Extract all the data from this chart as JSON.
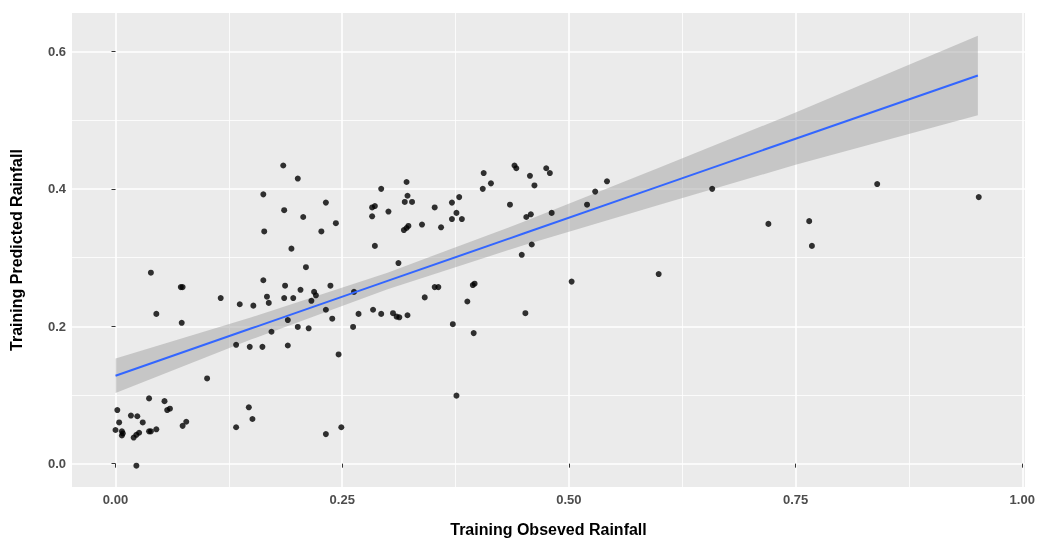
{
  "chart_data": {
    "type": "scatter",
    "xlabel": "Training Obseved Rainfall",
    "ylabel": "Training Predicted Rainfall",
    "xlim": [
      -0.048,
      1.003
    ],
    "ylim": [
      -0.034,
      0.656
    ],
    "xticks": [
      {
        "value": 0,
        "label": "0.00"
      },
      {
        "value": 0.25,
        "label": "0.25"
      },
      {
        "value": 0.5,
        "label": "0.50"
      },
      {
        "value": 0.75,
        "label": "0.75"
      },
      {
        "value": 1,
        "label": "1.00"
      }
    ],
    "yticks": [
      {
        "value": 0,
        "label": "0.0"
      },
      {
        "value": 0.2,
        "label": "0.2"
      },
      {
        "value": 0.4,
        "label": "0.4"
      },
      {
        "value": 0.6,
        "label": "0.6"
      }
    ],
    "grid": true,
    "series": [
      {
        "color": "#000000",
        "marker": "circle",
        "x": [
          0.185,
          0.201,
          0.163,
          0.186,
          0.232,
          0.207,
          0.164,
          0.227,
          0.243,
          0.293,
          0.283,
          0.286,
          0.283,
          0.301,
          0.286,
          0.194,
          0.21,
          0.039,
          0.163,
          0.072,
          0.074,
          0.116,
          0.137,
          0.152,
          0.167,
          0.169,
          0.187,
          0.186,
          0.196,
          0.204,
          0.219,
          0.221,
          0.216,
          0.237,
          0.232,
          0.239,
          0.263,
          0.268,
          0.284,
          0.293,
          0.262,
          0.045,
          0.073,
          0.19,
          0.201,
          0.213,
          0.172,
          0.133,
          0.148,
          0.162,
          0.19,
          0.246,
          0.101,
          0.037,
          0.054,
          0.057,
          0.06,
          0.002,
          0.017,
          0.024,
          0.004,
          0.03,
          0.0,
          0.007,
          0.008,
          0.007,
          0.02,
          0.023,
          0.026,
          0.037,
          0.039,
          0.045,
          0.074,
          0.078,
          0.023,
          0.133,
          0.147,
          0.151,
          0.232,
          0.249,
          0.321,
          0.322,
          0.319,
          0.327,
          0.318,
          0.321,
          0.323,
          0.338,
          0.352,
          0.359,
          0.371,
          0.379,
          0.376,
          0.371,
          0.382,
          0.405,
          0.406,
          0.414,
          0.435,
          0.44,
          0.442,
          0.457,
          0.462,
          0.475,
          0.479,
          0.453,
          0.458,
          0.481,
          0.459,
          0.448,
          0.52,
          0.529,
          0.542,
          0.312,
          0.341,
          0.352,
          0.356,
          0.388,
          0.394,
          0.396,
          0.306,
          0.31,
          0.313,
          0.322,
          0.372,
          0.395,
          0.376,
          0.452,
          0.503,
          0.599,
          0.658,
          0.72,
          0.765,
          0.768,
          0.84,
          0.952
        ],
        "values": [
          0.434,
          0.415,
          0.392,
          0.369,
          0.38,
          0.359,
          0.338,
          0.338,
          0.35,
          0.4,
          0.373,
          0.375,
          0.36,
          0.367,
          0.317,
          0.313,
          0.286,
          0.278,
          0.267,
          0.257,
          0.257,
          0.241,
          0.232,
          0.23,
          0.243,
          0.234,
          0.259,
          0.241,
          0.241,
          0.253,
          0.25,
          0.245,
          0.237,
          0.259,
          0.224,
          0.211,
          0.25,
          0.218,
          0.224,
          0.218,
          0.199,
          0.218,
          0.205,
          0.209,
          0.199,
          0.197,
          0.192,
          0.173,
          0.17,
          0.17,
          0.172,
          0.159,
          0.124,
          0.095,
          0.091,
          0.078,
          0.08,
          0.078,
          0.07,
          0.069,
          0.06,
          0.06,
          0.049,
          0.047,
          0.044,
          0.041,
          0.038,
          0.042,
          0.045,
          0.047,
          0.047,
          0.05,
          0.055,
          0.061,
          -0.003,
          0.053,
          0.082,
          0.065,
          0.043,
          0.053,
          0.41,
          0.39,
          0.381,
          0.381,
          0.34,
          0.343,
          0.346,
          0.348,
          0.373,
          0.344,
          0.38,
          0.388,
          0.365,
          0.356,
          0.356,
          0.4,
          0.423,
          0.408,
          0.377,
          0.434,
          0.43,
          0.419,
          0.405,
          0.43,
          0.423,
          0.359,
          0.363,
          0.365,
          0.319,
          0.304,
          0.377,
          0.396,
          0.411,
          0.292,
          0.242,
          0.257,
          0.257,
          0.236,
          0.26,
          0.262,
          0.219,
          0.214,
          0.213,
          0.216,
          0.203,
          0.19,
          0.099,
          0.219,
          0.265,
          0.276,
          0.4,
          0.349,
          0.353,
          0.317,
          0.407,
          0.388
        ]
      },
      {
        "type": "line",
        "marker": "none",
        "color": "#3366ff",
        "x": [
          0,
          0.15,
          0.3,
          0.45,
          0.6,
          0.75,
          0.951
        ],
        "values": [
          0.128,
          0.197,
          0.266,
          0.335,
          0.404,
          0.473,
          0.565
        ],
        "lower": [
          0.103,
          0.181,
          0.254,
          0.318,
          0.377,
          0.435,
          0.507
        ],
        "upper": [
          0.153,
          0.213,
          0.278,
          0.352,
          0.431,
          0.511,
          0.623
        ]
      }
    ]
  }
}
